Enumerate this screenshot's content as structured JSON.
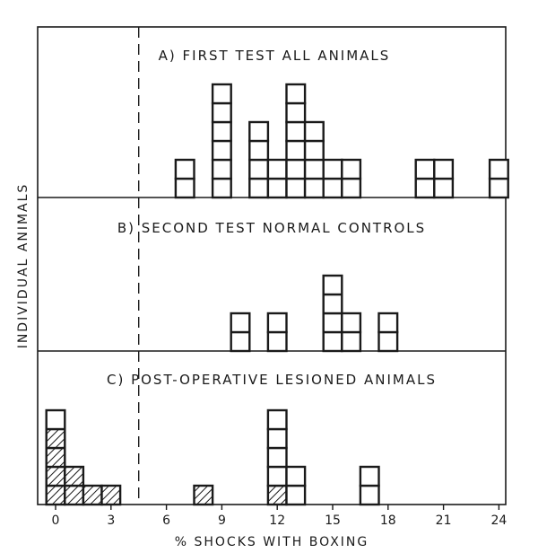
{
  "chart_data": {
    "type": "bar",
    "xlabel": "% SHOCKS WITH BOXING",
    "ylabel": "INDIVIDUAL ANIMALS",
    "x_ticks": [
      0,
      3,
      6,
      9,
      12,
      15,
      18,
      21,
      24
    ],
    "xlim": [
      -1,
      24.5
    ],
    "threshold_line_x": 4.5,
    "panels": [
      {
        "title": "A) FIRST TEST ALL ANIMALS",
        "bins": [
          {
            "x": 7,
            "count": 2
          },
          {
            "x": 9,
            "count": 6
          },
          {
            "x": 11,
            "count": 4
          },
          {
            "x": 12,
            "count": 2
          },
          {
            "x": 13,
            "count": 6
          },
          {
            "x": 14,
            "count": 4
          },
          {
            "x": 15,
            "count": 2
          },
          {
            "x": 16,
            "count": 2
          },
          {
            "x": 20,
            "count": 2
          },
          {
            "x": 21,
            "count": 2
          },
          {
            "x": 24,
            "count": 2
          }
        ]
      },
      {
        "title": "B) SECOND TEST NORMAL CONTROLS",
        "bins": [
          {
            "x": 10,
            "count": 2
          },
          {
            "x": 12,
            "count": 2
          },
          {
            "x": 15,
            "count": 4
          },
          {
            "x": 16,
            "count": 2
          },
          {
            "x": 18,
            "count": 2
          }
        ]
      },
      {
        "title": "C) POST-OPERATIVE LESIONED ANIMALS",
        "bins": [
          {
            "x": 0,
            "count": 5,
            "hatched": 4
          },
          {
            "x": 1,
            "count": 2,
            "hatched": 2
          },
          {
            "x": 2,
            "count": 1,
            "hatched": 1
          },
          {
            "x": 3,
            "count": 1,
            "hatched": 1
          },
          {
            "x": 8,
            "count": 1,
            "hatched": 1
          },
          {
            "x": 12,
            "count": 5,
            "hatched": 1
          },
          {
            "x": 13,
            "count": 2,
            "hatched": 0
          },
          {
            "x": 17,
            "count": 2,
            "hatched": 0
          }
        ]
      }
    ]
  }
}
